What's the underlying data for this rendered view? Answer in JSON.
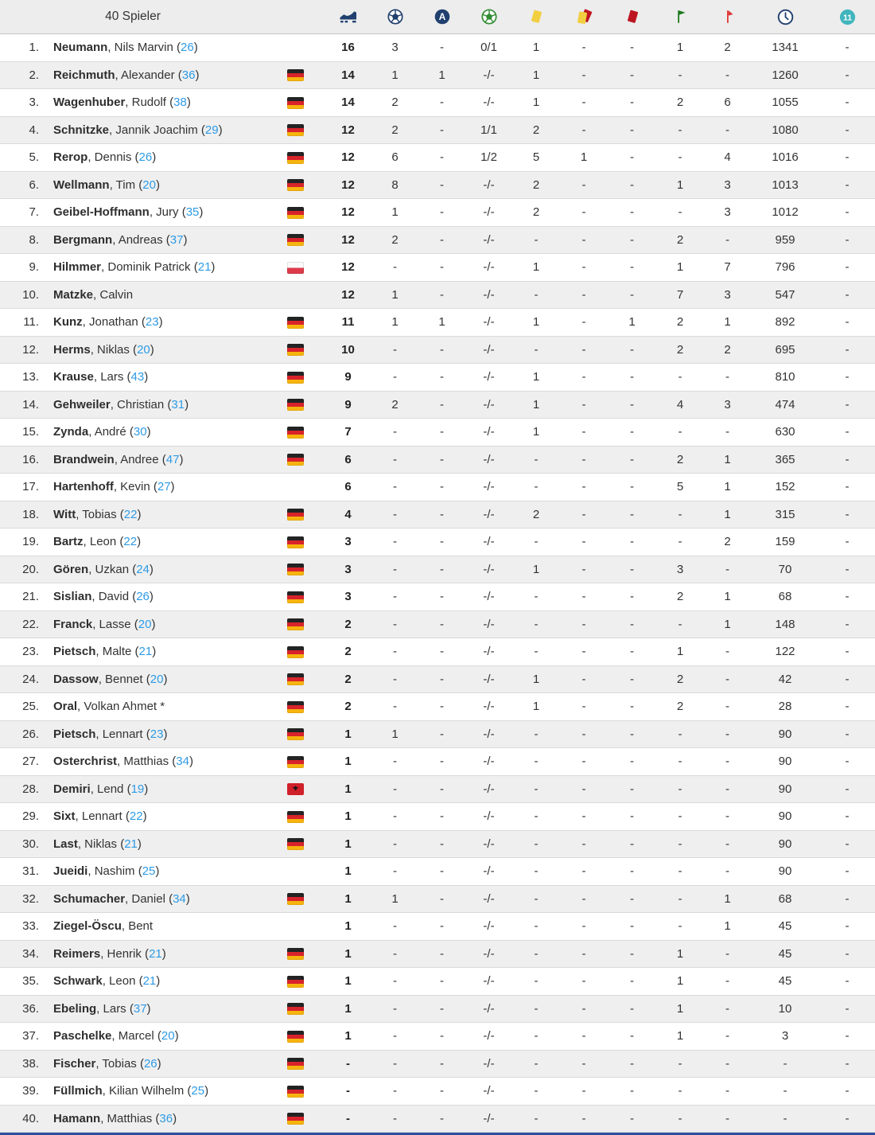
{
  "header": {
    "title": "40 Spieler",
    "stat_columns": [
      {
        "id": "appearances",
        "icon": "boot-icon",
        "color": "#20406e"
      },
      {
        "id": "goals",
        "icon": "ball-icon",
        "color": "#20406e"
      },
      {
        "id": "assists",
        "icon": "assist-a-icon",
        "color": "#20406e"
      },
      {
        "id": "penalty-goals",
        "icon": "penalty-ball-icon",
        "color": "#348c34"
      },
      {
        "id": "yellow-cards",
        "icon": "yellow-card-icon",
        "color": "#f2cf41"
      },
      {
        "id": "yellow-red-cards",
        "icon": "yellow-red-card-icon",
        "color": "#f2cf41"
      },
      {
        "id": "red-cards",
        "icon": "red-card-icon",
        "color": "#bd1622"
      },
      {
        "id": "subbed-in",
        "icon": "sub-in-flag-icon",
        "color": "#1d7a1d"
      },
      {
        "id": "subbed-out",
        "icon": "sub-out-flag-icon",
        "color": "#e03535"
      },
      {
        "id": "minutes",
        "icon": "clock-icon",
        "color": "#20406e"
      },
      {
        "id": "starting-eleven",
        "icon": "eleven-icon",
        "color": "#41b5bd"
      }
    ]
  },
  "colors": {
    "link_blue": "#2e9be6",
    "row_alt_bg": "#efefef",
    "header_bg": "#ededed",
    "bottom_bar": "#2d4f9e"
  },
  "players": [
    {
      "rank": "1.",
      "name_bold": "Neumann",
      "name_rest": ", Nils Marvin",
      "age": "26",
      "flag": "",
      "stats": [
        "16",
        "3",
        "-",
        "0/1",
        "1",
        "-",
        "-",
        "1",
        "2",
        "1341",
        "-"
      ]
    },
    {
      "rank": "2.",
      "name_bold": "Reichmuth",
      "name_rest": ", Alexander",
      "age": "36",
      "flag": "de",
      "stats": [
        "14",
        "1",
        "1",
        "-/-",
        "1",
        "-",
        "-",
        "-",
        "-",
        "1260",
        "-"
      ]
    },
    {
      "rank": "3.",
      "name_bold": "Wagenhuber",
      "name_rest": ", Rudolf",
      "age": "38",
      "flag": "de",
      "stats": [
        "14",
        "2",
        "-",
        "-/-",
        "1",
        "-",
        "-",
        "2",
        "6",
        "1055",
        "-"
      ]
    },
    {
      "rank": "4.",
      "name_bold": "Schnitzke",
      "name_rest": ", Jannik Joachim",
      "age": "29",
      "flag": "de",
      "stats": [
        "12",
        "2",
        "-",
        "1/1",
        "2",
        "-",
        "-",
        "-",
        "-",
        "1080",
        "-"
      ]
    },
    {
      "rank": "5.",
      "name_bold": "Rerop",
      "name_rest": ", Dennis",
      "age": "26",
      "flag": "de",
      "stats": [
        "12",
        "6",
        "-",
        "1/2",
        "5",
        "1",
        "-",
        "-",
        "4",
        "1016",
        "-"
      ]
    },
    {
      "rank": "6.",
      "name_bold": "Wellmann",
      "name_rest": ", Tim",
      "age": "20",
      "flag": "de",
      "stats": [
        "12",
        "8",
        "-",
        "-/-",
        "2",
        "-",
        "-",
        "1",
        "3",
        "1013",
        "-"
      ]
    },
    {
      "rank": "7.",
      "name_bold": "Geibel-Hoffmann",
      "name_rest": ", Jury",
      "age": "35",
      "flag": "de",
      "stats": [
        "12",
        "1",
        "-",
        "-/-",
        "2",
        "-",
        "-",
        "-",
        "3",
        "1012",
        "-"
      ]
    },
    {
      "rank": "8.",
      "name_bold": "Bergmann",
      "name_rest": ", Andreas",
      "age": "37",
      "flag": "de",
      "stats": [
        "12",
        "2",
        "-",
        "-/-",
        "-",
        "-",
        "-",
        "2",
        "-",
        "959",
        "-"
      ]
    },
    {
      "rank": "9.",
      "name_bold": "Hilmmer",
      "name_rest": ", Dominik Patrick",
      "age": "21",
      "flag": "pl",
      "stats": [
        "12",
        "-",
        "-",
        "-/-",
        "1",
        "-",
        "-",
        "1",
        "7",
        "796",
        "-"
      ]
    },
    {
      "rank": "10.",
      "name_bold": "Matzke",
      "name_rest": ", Calvin",
      "age": null,
      "flag": "",
      "stats": [
        "12",
        "1",
        "-",
        "-/-",
        "-",
        "-",
        "-",
        "7",
        "3",
        "547",
        "-"
      ]
    },
    {
      "rank": "11.",
      "name_bold": "Kunz",
      "name_rest": ", Jonathan",
      "age": "23",
      "flag": "de",
      "stats": [
        "11",
        "1",
        "1",
        "-/-",
        "1",
        "-",
        "1",
        "2",
        "1",
        "892",
        "-"
      ]
    },
    {
      "rank": "12.",
      "name_bold": "Herms",
      "name_rest": ", Niklas",
      "age": "20",
      "flag": "de",
      "stats": [
        "10",
        "-",
        "-",
        "-/-",
        "-",
        "-",
        "-",
        "2",
        "2",
        "695",
        "-"
      ]
    },
    {
      "rank": "13.",
      "name_bold": "Krause",
      "name_rest": ", Lars",
      "age": "43",
      "flag": "de",
      "stats": [
        "9",
        "-",
        "-",
        "-/-",
        "1",
        "-",
        "-",
        "-",
        "-",
        "810",
        "-"
      ]
    },
    {
      "rank": "14.",
      "name_bold": "Gehweiler",
      "name_rest": ", Christian",
      "age": "31",
      "flag": "de",
      "stats": [
        "9",
        "2",
        "-",
        "-/-",
        "1",
        "-",
        "-",
        "4",
        "3",
        "474",
        "-"
      ]
    },
    {
      "rank": "15.",
      "name_bold": "Zynda",
      "name_rest": ", André",
      "age": "30",
      "flag": "de",
      "stats": [
        "7",
        "-",
        "-",
        "-/-",
        "1",
        "-",
        "-",
        "-",
        "-",
        "630",
        "-"
      ]
    },
    {
      "rank": "16.",
      "name_bold": "Brandwein",
      "name_rest": ", Andree",
      "age": "47",
      "flag": "de",
      "stats": [
        "6",
        "-",
        "-",
        "-/-",
        "-",
        "-",
        "-",
        "2",
        "1",
        "365",
        "-"
      ]
    },
    {
      "rank": "17.",
      "name_bold": "Hartenhoff",
      "name_rest": ", Kevin",
      "age": "27",
      "flag": "",
      "stats": [
        "6",
        "-",
        "-",
        "-/-",
        "-",
        "-",
        "-",
        "5",
        "1",
        "152",
        "-"
      ]
    },
    {
      "rank": "18.",
      "name_bold": "Witt",
      "name_rest": ", Tobias",
      "age": "22",
      "flag": "de",
      "stats": [
        "4",
        "-",
        "-",
        "-/-",
        "2",
        "-",
        "-",
        "-",
        "1",
        "315",
        "-"
      ]
    },
    {
      "rank": "19.",
      "name_bold": "Bartz",
      "name_rest": ", Leon",
      "age": "22",
      "flag": "de",
      "stats": [
        "3",
        "-",
        "-",
        "-/-",
        "-",
        "-",
        "-",
        "-",
        "2",
        "159",
        "-"
      ]
    },
    {
      "rank": "20.",
      "name_bold": "Gören",
      "name_rest": ", Uzkan",
      "age": "24",
      "flag": "de",
      "stats": [
        "3",
        "-",
        "-",
        "-/-",
        "1",
        "-",
        "-",
        "3",
        "-",
        "70",
        "-"
      ]
    },
    {
      "rank": "21.",
      "name_bold": "Sislian",
      "name_rest": ", David",
      "age": "26",
      "flag": "de",
      "stats": [
        "3",
        "-",
        "-",
        "-/-",
        "-",
        "-",
        "-",
        "2",
        "1",
        "68",
        "-"
      ]
    },
    {
      "rank": "22.",
      "name_bold": "Franck",
      "name_rest": ", Lasse",
      "age": "20",
      "flag": "de",
      "stats": [
        "2",
        "-",
        "-",
        "-/-",
        "-",
        "-",
        "-",
        "-",
        "1",
        "148",
        "-"
      ]
    },
    {
      "rank": "23.",
      "name_bold": "Pietsch",
      "name_rest": ", Malte",
      "age": "21",
      "flag": "de",
      "stats": [
        "2",
        "-",
        "-",
        "-/-",
        "-",
        "-",
        "-",
        "1",
        "-",
        "122",
        "-"
      ]
    },
    {
      "rank": "24.",
      "name_bold": "Dassow",
      "name_rest": ", Bennet",
      "age": "20",
      "flag": "de",
      "stats": [
        "2",
        "-",
        "-",
        "-/-",
        "1",
        "-",
        "-",
        "2",
        "-",
        "42",
        "-"
      ]
    },
    {
      "rank": "25.",
      "name_bold": "Oral",
      "name_rest": ", Volkan Ahmet *",
      "age": null,
      "flag": "de",
      "stats": [
        "2",
        "-",
        "-",
        "-/-",
        "1",
        "-",
        "-",
        "2",
        "-",
        "28",
        "-"
      ]
    },
    {
      "rank": "26.",
      "name_bold": "Pietsch",
      "name_rest": ", Lennart",
      "age": "23",
      "flag": "de",
      "stats": [
        "1",
        "1",
        "-",
        "-/-",
        "-",
        "-",
        "-",
        "-",
        "-",
        "90",
        "-"
      ]
    },
    {
      "rank": "27.",
      "name_bold": "Osterchrist",
      "name_rest": ", Matthias",
      "age": "34",
      "flag": "de",
      "stats": [
        "1",
        "-",
        "-",
        "-/-",
        "-",
        "-",
        "-",
        "-",
        "-",
        "90",
        "-"
      ]
    },
    {
      "rank": "28.",
      "name_bold": "Demiri",
      "name_rest": ", Lend",
      "age": "19",
      "flag": "al",
      "stats": [
        "1",
        "-",
        "-",
        "-/-",
        "-",
        "-",
        "-",
        "-",
        "-",
        "90",
        "-"
      ]
    },
    {
      "rank": "29.",
      "name_bold": "Sixt",
      "name_rest": ", Lennart",
      "age": "22",
      "flag": "de",
      "stats": [
        "1",
        "-",
        "-",
        "-/-",
        "-",
        "-",
        "-",
        "-",
        "-",
        "90",
        "-"
      ]
    },
    {
      "rank": "30.",
      "name_bold": "Last",
      "name_rest": ", Niklas",
      "age": "21",
      "flag": "de",
      "stats": [
        "1",
        "-",
        "-",
        "-/-",
        "-",
        "-",
        "-",
        "-",
        "-",
        "90",
        "-"
      ]
    },
    {
      "rank": "31.",
      "name_bold": "Jueidi",
      "name_rest": ", Nashim",
      "age": "25",
      "flag": "",
      "stats": [
        "1",
        "-",
        "-",
        "-/-",
        "-",
        "-",
        "-",
        "-",
        "-",
        "90",
        "-"
      ]
    },
    {
      "rank": "32.",
      "name_bold": "Schumacher",
      "name_rest": ", Daniel",
      "age": "34",
      "flag": "de",
      "stats": [
        "1",
        "1",
        "-",
        "-/-",
        "-",
        "-",
        "-",
        "-",
        "1",
        "68",
        "-"
      ]
    },
    {
      "rank": "33.",
      "name_bold": "Ziegel-Öscu",
      "name_rest": ", Bent",
      "age": null,
      "flag": "",
      "stats": [
        "1",
        "-",
        "-",
        "-/-",
        "-",
        "-",
        "-",
        "-",
        "1",
        "45",
        "-"
      ]
    },
    {
      "rank": "34.",
      "name_bold": "Reimers",
      "name_rest": ", Henrik",
      "age": "21",
      "flag": "de",
      "stats": [
        "1",
        "-",
        "-",
        "-/-",
        "-",
        "-",
        "-",
        "1",
        "-",
        "45",
        "-"
      ]
    },
    {
      "rank": "35.",
      "name_bold": "Schwark",
      "name_rest": ", Leon",
      "age": "21",
      "flag": "de",
      "stats": [
        "1",
        "-",
        "-",
        "-/-",
        "-",
        "-",
        "-",
        "1",
        "-",
        "45",
        "-"
      ]
    },
    {
      "rank": "36.",
      "name_bold": "Ebeling",
      "name_rest": ", Lars",
      "age": "37",
      "flag": "de",
      "stats": [
        "1",
        "-",
        "-",
        "-/-",
        "-",
        "-",
        "-",
        "1",
        "-",
        "10",
        "-"
      ]
    },
    {
      "rank": "37.",
      "name_bold": "Paschelke",
      "name_rest": ", Marcel",
      "age": "20",
      "flag": "de",
      "stats": [
        "1",
        "-",
        "-",
        "-/-",
        "-",
        "-",
        "-",
        "1",
        "-",
        "3",
        "-"
      ]
    },
    {
      "rank": "38.",
      "name_bold": "Fischer",
      "name_rest": ", Tobias",
      "age": "26",
      "flag": "de",
      "stats": [
        "-",
        "-",
        "-",
        "-/-",
        "-",
        "-",
        "-",
        "-",
        "-",
        "-",
        "-"
      ]
    },
    {
      "rank": "39.",
      "name_bold": "Füllmich",
      "name_rest": ", Kilian Wilhelm",
      "age": "25",
      "flag": "de",
      "stats": [
        "-",
        "-",
        "-",
        "-/-",
        "-",
        "-",
        "-",
        "-",
        "-",
        "-",
        "-"
      ]
    },
    {
      "rank": "40.",
      "name_bold": "Hamann",
      "name_rest": ", Matthias",
      "age": "36",
      "flag": "de",
      "stats": [
        "-",
        "-",
        "-",
        "-/-",
        "-",
        "-",
        "-",
        "-",
        "-",
        "-",
        "-"
      ]
    }
  ]
}
